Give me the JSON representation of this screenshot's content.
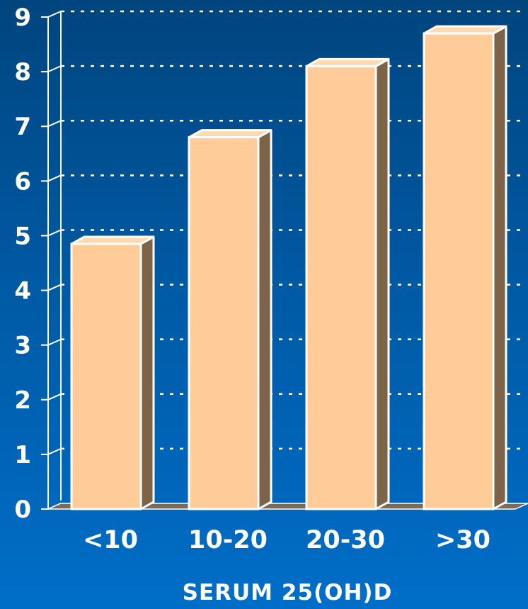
{
  "chart_data": {
    "type": "bar",
    "categories": [
      "<10",
      "10-20",
      "20-30",
      ">30"
    ],
    "values": [
      4.85,
      6.8,
      8.1,
      8.7
    ],
    "title": "",
    "xlabel": "SERUM 25(OH)D",
    "ylabel": "",
    "ylim": [
      0,
      9
    ],
    "yticks": [
      "0",
      "1",
      "2",
      "3",
      "4",
      "5",
      "6",
      "7",
      "8",
      "9"
    ],
    "grid": true,
    "legend": "none",
    "colors": {
      "bar_face": "#ffcc99",
      "bar_side": "#7d6348",
      "bar_top": "#ffd9b0",
      "bar_outline": "#ffffff",
      "grid": "#ffffff",
      "text": "#ffffff"
    }
  }
}
